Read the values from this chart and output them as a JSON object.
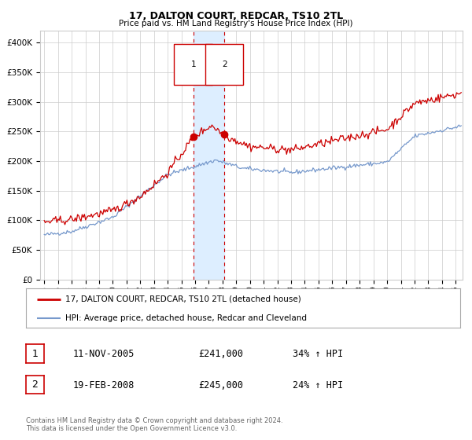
{
  "title": "17, DALTON COURT, REDCAR, TS10 2TL",
  "subtitle": "Price paid vs. HM Land Registry's House Price Index (HPI)",
  "legend_line1": "17, DALTON COURT, REDCAR, TS10 2TL (detached house)",
  "legend_line2": "HPI: Average price, detached house, Redcar and Cleveland",
  "footer1": "Contains HM Land Registry data © Crown copyright and database right 2024.",
  "footer2": "This data is licensed under the Open Government Licence v3.0.",
  "transactions": [
    {
      "num": "1",
      "date": "11-NOV-2005",
      "price": "£241,000",
      "hpi_change": "34% ↑ HPI"
    },
    {
      "num": "2",
      "date": "19-FEB-2008",
      "price": "£245,000",
      "hpi_change": "24% ↑ HPI"
    }
  ],
  "trans_dates_decimal": [
    2005.864,
    2008.131
  ],
  "trans_prices": [
    241000,
    245000
  ],
  "ylim": [
    0,
    420000
  ],
  "yticks": [
    0,
    50000,
    100000,
    150000,
    200000,
    250000,
    300000,
    350000,
    400000
  ],
  "ytick_labels": [
    "£0",
    "£50K",
    "£100K",
    "£150K",
    "£200K",
    "£250K",
    "£300K",
    "£350K",
    "£400K"
  ],
  "xlim_start": 1994.7,
  "xlim_end": 2025.5,
  "red_line_color": "#cc0000",
  "blue_line_color": "#7799cc",
  "highlight_color": "#ddeeff",
  "grid_color": "#cccccc",
  "bg_color": "#ffffff",
  "random_seed": 42
}
